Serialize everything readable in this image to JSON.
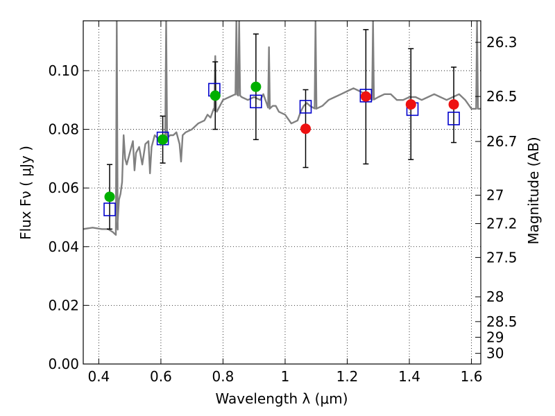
{
  "chart_data": {
    "type": "scatter",
    "xlabel": "Wavelength  λ (μm)",
    "ylabel": "Flux  Fν  ( μJy )",
    "y2label": "Magnitude (AB)",
    "xlim": [
      0.35,
      1.63
    ],
    "ylim": [
      0.0,
      0.117
    ],
    "grid": true,
    "x_ticks": [
      0.4,
      0.6,
      0.8,
      1.0,
      1.2,
      1.4,
      1.6
    ],
    "x_tick_labels": [
      "0.4",
      "0.6",
      "0.8",
      "1",
      "1.2",
      "1.4",
      "1.6"
    ],
    "y_ticks": [
      0.0,
      0.02,
      0.04,
      0.06,
      0.08,
      0.1
    ],
    "y_tick_labels": [
      "0.00",
      "0.02",
      "0.04",
      "0.06",
      "0.08",
      "0.10"
    ],
    "mag_ticks": [
      26.3,
      26.5,
      26.7,
      27,
      27.2,
      27.5,
      28,
      28.5,
      29,
      30
    ],
    "mag_tick_labels": [
      "26.3",
      "26.5",
      "26.7",
      "27",
      "27.2",
      "27.5",
      "28",
      "28.5",
      "29",
      "30"
    ],
    "colors": {
      "model": "#808080",
      "green": "#00b000",
      "red": "#ee1111",
      "square": "#0000cc",
      "errorbar": "#000000"
    },
    "model_spectrum": {
      "name": "",
      "x": [
        0.35,
        0.38,
        0.41,
        0.43,
        0.445,
        0.455,
        0.46,
        0.465,
        0.47,
        0.475,
        0.48,
        0.485,
        0.49,
        0.5,
        0.51,
        0.515,
        0.52,
        0.53,
        0.54,
        0.55,
        0.56,
        0.565,
        0.57,
        0.58,
        0.59,
        0.6,
        0.61,
        0.62,
        0.63,
        0.64,
        0.65,
        0.66,
        0.665,
        0.67,
        0.68,
        0.7,
        0.72,
        0.74,
        0.75,
        0.76,
        0.77,
        0.78,
        0.79,
        0.8,
        0.82,
        0.84,
        0.86,
        0.88,
        0.9,
        0.92,
        0.93,
        0.94,
        0.95,
        0.96,
        0.97,
        0.98,
        1.0,
        1.02,
        1.04,
        1.05,
        1.06,
        1.07,
        1.08,
        1.1,
        1.12,
        1.14,
        1.16,
        1.18,
        1.2,
        1.22,
        1.24,
        1.26,
        1.28,
        1.3,
        1.32,
        1.34,
        1.36,
        1.38,
        1.4,
        1.42,
        1.44,
        1.46,
        1.48,
        1.5,
        1.52,
        1.54,
        1.56,
        1.58,
        1.6,
        1.63
      ],
      "y": [
        0.046,
        0.0465,
        0.046,
        0.046,
        0.045,
        0.044,
        0.047,
        0.056,
        0.058,
        0.062,
        0.078,
        0.07,
        0.068,
        0.072,
        0.076,
        0.066,
        0.072,
        0.074,
        0.068,
        0.075,
        0.076,
        0.065,
        0.074,
        0.078,
        0.077,
        0.077,
        0.078,
        0.077,
        0.078,
        0.078,
        0.079,
        0.075,
        0.069,
        0.078,
        0.079,
        0.08,
        0.082,
        0.083,
        0.085,
        0.084,
        0.087,
        0.086,
        0.088,
        0.09,
        0.091,
        0.092,
        0.091,
        0.09,
        0.091,
        0.09,
        0.092,
        0.089,
        0.087,
        0.088,
        0.088,
        0.086,
        0.085,
        0.082,
        0.083,
        0.086,
        0.088,
        0.089,
        0.088,
        0.087,
        0.088,
        0.09,
        0.091,
        0.092,
        0.093,
        0.094,
        0.093,
        0.092,
        0.09,
        0.091,
        0.092,
        0.092,
        0.09,
        0.09,
        0.091,
        0.091,
        0.09,
        0.091,
        0.092,
        0.091,
        0.09,
        0.091,
        0.092,
        0.09,
        0.087,
        0.087
      ]
    },
    "model_spikes": [
      {
        "x": 0.458,
        "y": 0.117
      },
      {
        "x": 0.617,
        "y": 0.117
      },
      {
        "x": 0.775,
        "y": 0.105
      },
      {
        "x": 0.843,
        "y": 0.117
      },
      {
        "x": 0.852,
        "y": 0.117
      },
      {
        "x": 0.948,
        "y": 0.108
      },
      {
        "x": 1.098,
        "y": 0.117
      },
      {
        "x": 1.283,
        "y": 0.117
      },
      {
        "x": 1.618,
        "y": 0.117
      }
    ],
    "measured_points": [
      {
        "x": 0.435,
        "y": 0.057,
        "err_low": 0.046,
        "err_high": 0.068,
        "color": "green"
      },
      {
        "x": 0.606,
        "y": 0.0765,
        "err_low": 0.0685,
        "err_high": 0.0845,
        "color": "green"
      },
      {
        "x": 0.775,
        "y": 0.0915,
        "err_low": 0.08,
        "err_high": 0.103,
        "color": "green"
      },
      {
        "x": 0.906,
        "y": 0.0945,
        "err_low": 0.0765,
        "err_high": 0.1125,
        "color": "green"
      },
      {
        "x": 1.066,
        "y": 0.0802,
        "err_low": 0.067,
        "err_high": 0.0935,
        "color": "red"
      },
      {
        "x": 1.26,
        "y": 0.0912,
        "err_low": 0.0682,
        "err_high": 0.114,
        "color": "red"
      },
      {
        "x": 1.405,
        "y": 0.0885,
        "err_low": 0.0697,
        "err_high": 0.1075,
        "color": "red"
      },
      {
        "x": 1.543,
        "y": 0.0885,
        "err_low": 0.0755,
        "err_high": 0.1012,
        "color": "red"
      }
    ],
    "model_points": [
      {
        "x": 0.435,
        "y": 0.0527
      },
      {
        "x": 0.606,
        "y": 0.0769
      },
      {
        "x": 0.772,
        "y": 0.0935
      },
      {
        "x": 0.906,
        "y": 0.0895
      },
      {
        "x": 1.066,
        "y": 0.0877
      },
      {
        "x": 1.26,
        "y": 0.0915
      },
      {
        "x": 1.41,
        "y": 0.0869
      },
      {
        "x": 1.543,
        "y": 0.0837
      }
    ]
  }
}
